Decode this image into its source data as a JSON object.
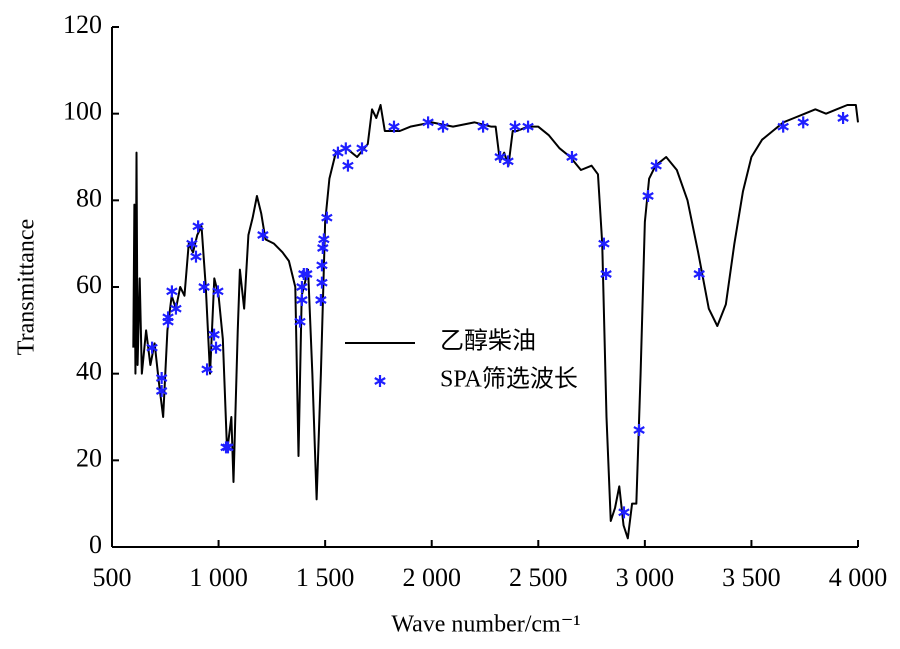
{
  "chart_data": {
    "type": "line",
    "x_label": "Wave number/cm⁻¹",
    "y_label": "Transmittance",
    "xlim": [
      500,
      4000
    ],
    "xticks": [
      500,
      {
        "value": 1000,
        "label": "1 000"
      },
      {
        "value": 1500,
        "label": "1 500"
      },
      {
        "value": 2000,
        "label": "2 000"
      },
      {
        "value": 2500,
        "label": "2 500"
      },
      {
        "value": 3000,
        "label": "3 000"
      },
      {
        "value": 3500,
        "label": "3 500"
      },
      {
        "value": 4000,
        "label": "4 000"
      }
    ],
    "ylim": [
      0,
      120
    ],
    "yticks": [
      0,
      20,
      40,
      60,
      80,
      100,
      120
    ],
    "legend": "center",
    "series": [
      {
        "name": "乙醇柴油",
        "color": "#000000",
        "type": "line",
        "x": [
          600,
          605,
          610,
          615,
          620,
          630,
          640,
          660,
          680,
          700,
          720,
          740,
          760,
          780,
          800,
          820,
          840,
          860,
          880,
          900,
          920,
          940,
          960,
          980,
          1000,
          1020,
          1040,
          1060,
          1070,
          1090,
          1100,
          1120,
          1140,
          1160,
          1180,
          1200,
          1220,
          1260,
          1300,
          1330,
          1360,
          1375,
          1390,
          1420,
          1440,
          1460,
          1480,
          1500,
          1520,
          1550,
          1600,
          1650,
          1700,
          1720,
          1740,
          1760,
          1780,
          1800,
          1850,
          1900,
          2000,
          2100,
          2200,
          2280,
          2300,
          2320,
          2340,
          2360,
          2380,
          2400,
          2450,
          2500,
          2550,
          2600,
          2650,
          2700,
          2750,
          2780,
          2800,
          2820,
          2840,
          2860,
          2880,
          2900,
          2920,
          2940,
          2960,
          2980,
          3000,
          3020,
          3050,
          3100,
          3150,
          3200,
          3250,
          3300,
          3340,
          3380,
          3420,
          3460,
          3500,
          3550,
          3600,
          3650,
          3700,
          3750,
          3800,
          3850,
          3900,
          3950,
          3990,
          4000
        ],
        "values": [
          46,
          79,
          40,
          91,
          42,
          62,
          40,
          50,
          42,
          47,
          38,
          30,
          50,
          58,
          55,
          60,
          58,
          70,
          68,
          72,
          74,
          60,
          40,
          62,
          58,
          48,
          22,
          30,
          15,
          50,
          64,
          55,
          72,
          76,
          81,
          77,
          71,
          70,
          68,
          66,
          60,
          21,
          58,
          64,
          40,
          11,
          40,
          75,
          85,
          91,
          92,
          90,
          93,
          101,
          99,
          102,
          96,
          96,
          96,
          97,
          98,
          97,
          98,
          97,
          97,
          89,
          91,
          88,
          96,
          96,
          97,
          97,
          95,
          92,
          90,
          87,
          88,
          86,
          70,
          30,
          6,
          9,
          14,
          5,
          2,
          10,
          10,
          40,
          75,
          85,
          88,
          90,
          87,
          80,
          68,
          55,
          51,
          56,
          70,
          82,
          90,
          94,
          96,
          98,
          99,
          100,
          101,
          100,
          101,
          102,
          102,
          98
        ]
      },
      {
        "name": "SPA筛选波长",
        "color": "#1f1fff",
        "type": "scatter",
        "x": [
          688,
          733,
          733,
          763,
          763,
          781,
          800,
          875,
          894,
          904,
          932,
          946,
          979,
          988,
          997,
          1035,
          1044,
          1208,
          1382,
          1391,
          1391,
          1400,
          1414,
          1480,
          1485,
          1485,
          1489,
          1494,
          1508,
          1560,
          1597,
          1607,
          1673,
          1823,
          1983,
          2053,
          2241,
          2321,
          2358,
          2391,
          2452,
          2658,
          2808,
          2818,
          2902,
          2973,
          3015,
          3053,
          3255,
          3649,
          3743,
          3930
        ],
        "values": [
          46,
          39,
          36,
          52,
          53,
          59,
          55,
          70,
          67,
          74,
          60,
          41,
          49,
          46,
          59,
          23,
          23,
          72,
          52,
          57,
          60,
          63,
          63,
          57,
          61,
          65,
          69,
          71,
          76,
          91,
          92,
          88,
          92,
          97,
          98,
          97,
          97,
          90,
          89,
          97,
          97,
          90,
          70,
          63,
          8,
          27,
          81,
          88,
          63,
          97,
          98,
          99
        ]
      }
    ]
  }
}
